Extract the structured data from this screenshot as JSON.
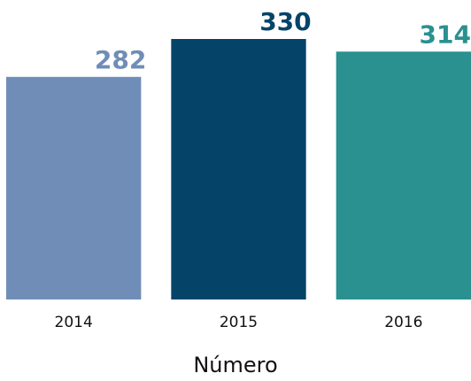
{
  "chart_data": {
    "type": "bar",
    "x_label": "Número",
    "categories": [
      "2014",
      "2015",
      "2016"
    ],
    "values": [
      282,
      330,
      314
    ],
    "colors": [
      "#6f8db7",
      "#054468",
      "#2a9090"
    ],
    "ylim": [
      0,
      330
    ]
  }
}
